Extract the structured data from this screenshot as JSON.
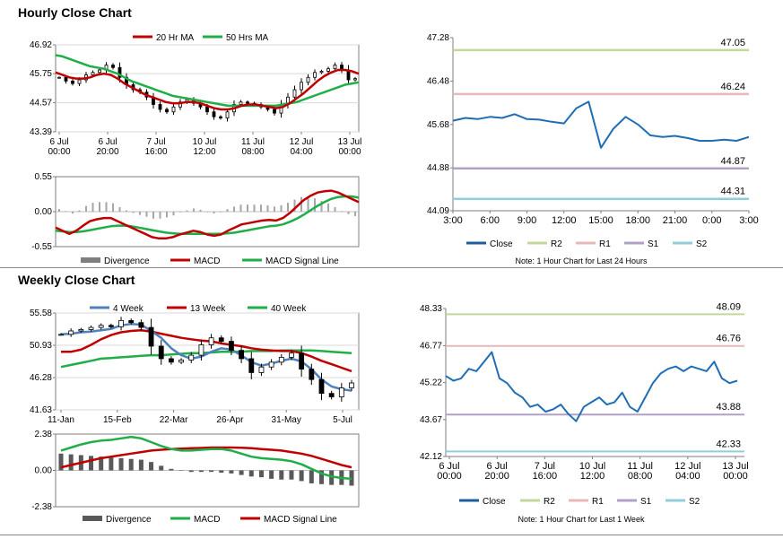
{
  "sections": {
    "hourly_title": "Hourly Close Chart",
    "weekly_title": "Weekly Close Chart"
  },
  "colors": {
    "red": "#c00000",
    "green": "#1fae48",
    "blue": "#1f6eb4",
    "darkblue": "#1c5e9c",
    "gray": "#7f7f7f",
    "r2": "#c4d79b",
    "r1": "#e6b9b8",
    "s1": "#b1a0c7",
    "s2": "#92cddc",
    "candle": "#000000"
  },
  "chart_data": [
    {
      "id": "hourly_price",
      "type": "candlestick",
      "legend": [
        "20 Hr MA",
        "50 Hrs MA"
      ],
      "yticks": [
        "46.92",
        "45.75",
        "44.57",
        "43.39"
      ],
      "ylim": [
        43.39,
        46.92
      ],
      "xticks": [
        "6 Jul\n00:00",
        "6 Jul\n20:00",
        "7 Jul\n16:00",
        "10 Jul\n12:00",
        "11 Jul\n08:00",
        "12 Jul\n04:00",
        "13 Jul\n00:00"
      ],
      "close": [
        45.6,
        45.45,
        45.35,
        45.5,
        45.7,
        45.8,
        45.9,
        46.1,
        46.0,
        45.6,
        45.3,
        45.1,
        45.0,
        44.8,
        44.5,
        44.3,
        44.2,
        44.4,
        44.6,
        44.7,
        44.55,
        44.4,
        44.2,
        44.0,
        43.95,
        44.2,
        44.5,
        44.6,
        44.55,
        44.5,
        44.4,
        44.3,
        44.15,
        44.5,
        44.8,
        45.1,
        45.4,
        45.6,
        45.8,
        45.85,
        45.95,
        46.1,
        45.9,
        45.5,
        45.55
      ],
      "ma20": [
        45.8,
        45.7,
        45.6,
        45.55,
        45.55,
        45.6,
        45.7,
        45.75,
        45.7,
        45.55,
        45.35,
        45.2,
        45.05,
        44.9,
        44.8,
        44.7,
        44.6,
        44.55,
        44.55,
        44.6,
        44.6,
        44.55,
        44.45,
        44.35,
        44.3,
        44.3,
        44.35,
        44.45,
        44.5,
        44.5,
        44.45,
        44.4,
        44.35,
        44.4,
        44.55,
        44.75,
        44.95,
        45.2,
        45.45,
        45.65,
        45.8,
        45.9,
        45.9,
        45.85,
        45.75
      ],
      "ma50": [
        46.5,
        46.45,
        46.35,
        46.25,
        46.15,
        46.05,
        46.0,
        45.95,
        45.85,
        45.75,
        45.6,
        45.45,
        45.35,
        45.25,
        45.15,
        45.05,
        44.95,
        44.85,
        44.8,
        44.75,
        44.7,
        44.65,
        44.6,
        44.55,
        44.5,
        44.45,
        44.45,
        44.45,
        44.45,
        44.45,
        44.45,
        44.45,
        44.45,
        44.5,
        44.55,
        44.6,
        44.7,
        44.8,
        44.9,
        45.0,
        45.1,
        45.2,
        45.3,
        45.35,
        45.4
      ]
    },
    {
      "id": "hourly_macd",
      "type": "bar+line",
      "legend": [
        "Divergence",
        "MACD",
        "MACD Signal Line"
      ],
      "yticks": [
        "0.55",
        "0.00",
        "-0.55"
      ],
      "ylim": [
        -0.55,
        0.55
      ],
      "macd": [
        -0.25,
        -0.3,
        -0.35,
        -0.3,
        -0.22,
        -0.15,
        -0.12,
        -0.1,
        -0.1,
        -0.15,
        -0.2,
        -0.25,
        -0.3,
        -0.35,
        -0.4,
        -0.42,
        -0.42,
        -0.4,
        -0.36,
        -0.33,
        -0.3,
        -0.32,
        -0.36,
        -0.38,
        -0.36,
        -0.3,
        -0.25,
        -0.2,
        -0.18,
        -0.16,
        -0.14,
        -0.13,
        -0.14,
        -0.1,
        -0.02,
        0.08,
        0.18,
        0.25,
        0.3,
        0.32,
        0.33,
        0.3,
        0.25,
        0.2,
        0.15
      ],
      "signal": [
        -0.3,
        -0.31,
        -0.32,
        -0.32,
        -0.31,
        -0.29,
        -0.27,
        -0.25,
        -0.23,
        -0.22,
        -0.22,
        -0.23,
        -0.25,
        -0.27,
        -0.29,
        -0.31,
        -0.33,
        -0.34,
        -0.35,
        -0.35,
        -0.35,
        -0.35,
        -0.35,
        -0.35,
        -0.35,
        -0.34,
        -0.33,
        -0.31,
        -0.29,
        -0.27,
        -0.25,
        -0.23,
        -0.22,
        -0.2,
        -0.16,
        -0.11,
        -0.05,
        0.02,
        0.09,
        0.15,
        0.2,
        0.23,
        0.24,
        0.24,
        0.22
      ],
      "divergence": [
        0.04,
        0.01,
        -0.03,
        0.02,
        0.09,
        0.14,
        0.15,
        0.15,
        0.13,
        0.07,
        0.02,
        -0.02,
        -0.05,
        -0.08,
        -0.11,
        -0.11,
        -0.09,
        -0.06,
        -0.01,
        0.02,
        0.05,
        0.03,
        -0.01,
        -0.03,
        -0.01,
        0.04,
        0.08,
        0.11,
        0.11,
        0.11,
        0.11,
        0.1,
        0.08,
        0.1,
        0.14,
        0.19,
        0.23,
        0.23,
        0.21,
        0.17,
        0.13,
        0.07,
        0.01,
        -0.04,
        -0.07
      ]
    },
    {
      "id": "hourly_close_24",
      "type": "line",
      "yticks": [
        "47.28",
        "46.48",
        "45.68",
        "44.88",
        "44.09"
      ],
      "ylim": [
        44.09,
        47.28
      ],
      "xticks": [
        "3:00",
        "6:00",
        "9:00",
        "12:00",
        "15:00",
        "18:00",
        "21:00",
        "0:00",
        "3:00"
      ],
      "levels": [
        {
          "name": "R2",
          "value": 47.05,
          "label": "47.05"
        },
        {
          "name": "R1",
          "value": 46.24,
          "label": "46.24"
        },
        {
          "name": "S1",
          "value": 44.87,
          "label": "44.87"
        },
        {
          "name": "S2",
          "value": 44.31,
          "label": "44.31"
        }
      ],
      "close": [
        45.75,
        45.8,
        45.78,
        45.82,
        45.8,
        45.87,
        45.78,
        45.77,
        45.73,
        45.7,
        45.98,
        46.1,
        45.25,
        45.6,
        45.82,
        45.68,
        45.48,
        45.45,
        45.47,
        45.43,
        45.38,
        45.38,
        45.4,
        45.38,
        45.45
      ],
      "legend": [
        "Close",
        "R2",
        "R1",
        "S1",
        "S2"
      ],
      "note": "Note: 1 Hour Chart for Last 24 Hours"
    },
    {
      "id": "weekly_price",
      "type": "candlestick",
      "legend": [
        "4 Week",
        "13 Week",
        "40 Week"
      ],
      "yticks": [
        "55.58",
        "50.93",
        "46.28",
        "41.63"
      ],
      "ylim": [
        41.63,
        55.58
      ],
      "xticks": [
        "11-Jan",
        "15-Feb",
        "22-Mar",
        "26-Apr",
        "31-May",
        "5-Jul"
      ],
      "close": [
        52.5,
        53.0,
        53.2,
        53.5,
        53.8,
        53.6,
        54.5,
        54.2,
        53.5,
        50.8,
        49.0,
        48.5,
        48.8,
        49.5,
        51.0,
        52.0,
        51.5,
        50.2,
        49.0,
        47.0,
        47.8,
        48.5,
        49.2,
        49.8,
        47.5,
        46.0,
        44.0,
        43.5,
        44.8,
        45.5
      ],
      "wk4": [
        52.5,
        52.6,
        52.8,
        52.9,
        53.1,
        53.3,
        53.8,
        54.0,
        53.9,
        53.0,
        52.0,
        50.5,
        49.5,
        49.0,
        49.3,
        50.0,
        50.5,
        50.3,
        49.5,
        48.5,
        48.0,
        48.3,
        48.7,
        49.0,
        48.6,
        47.5,
        46.0,
        45.0,
        44.6,
        44.4
      ],
      "wk13": [
        50.0,
        50.0,
        50.3,
        51.0,
        51.8,
        52.4,
        52.8,
        53.0,
        53.1,
        52.9,
        52.6,
        52.3,
        52.0,
        51.8,
        51.6,
        51.5,
        51.2,
        51.0,
        50.8,
        50.5,
        50.3,
        50.2,
        50.1,
        50.1,
        49.8,
        49.3,
        48.7,
        48.2,
        47.7,
        47.2
      ],
      "wk40": [
        47.8,
        48.1,
        48.4,
        48.7,
        49.0,
        49.1,
        49.2,
        49.3,
        49.4,
        49.5,
        49.5,
        49.6,
        49.7,
        49.8,
        49.8,
        49.9,
        50.0,
        50.0,
        50.0,
        50.1,
        50.1,
        50.1,
        50.2,
        50.2,
        50.2,
        50.2,
        50.1,
        50.0,
        49.9,
        49.8
      ]
    },
    {
      "id": "weekly_macd",
      "type": "bar+line",
      "legend": [
        "Divergence",
        "MACD",
        "MACD Signal Line"
      ],
      "yticks": [
        "2.38",
        "0.00",
        "-2.38"
      ],
      "ylim": [
        -2.38,
        2.38
      ],
      "macd": [
        1.3,
        1.5,
        1.7,
        1.85,
        1.95,
        2.0,
        2.1,
        2.2,
        2.1,
        1.85,
        1.6,
        1.4,
        1.3,
        1.3,
        1.35,
        1.4,
        1.4,
        1.3,
        1.1,
        0.9,
        0.8,
        0.75,
        0.7,
        0.6,
        0.4,
        0.1,
        -0.2,
        -0.4,
        -0.5,
        -0.55
      ],
      "signal": [
        0.2,
        0.35,
        0.5,
        0.65,
        0.8,
        0.9,
        1.0,
        1.1,
        1.2,
        1.3,
        1.35,
        1.4,
        1.42,
        1.45,
        1.47,
        1.5,
        1.5,
        1.5,
        1.48,
        1.45,
        1.4,
        1.35,
        1.3,
        1.2,
        1.1,
        0.95,
        0.75,
        0.55,
        0.35,
        0.2
      ],
      "divergence": [
        1.1,
        1.05,
        1.0,
        0.95,
        0.9,
        0.85,
        0.8,
        0.75,
        0.7,
        0.55,
        0.3,
        0.1,
        0.0,
        -0.1,
        -0.1,
        -0.1,
        -0.15,
        -0.2,
        -0.3,
        -0.4,
        -0.45,
        -0.55,
        -0.6,
        -0.6,
        -0.7,
        -0.85,
        -0.9,
        -0.95,
        -0.95,
        -1.0
      ]
    },
    {
      "id": "weekly_close_1w",
      "type": "line",
      "yticks": [
        "48.33",
        "46.77",
        "45.22",
        "43.67",
        "42.12"
      ],
      "ylim": [
        42.12,
        48.33
      ],
      "xticks": [
        "6 Jul\n00:00",
        "6 Jul\n20:00",
        "7 Jul\n16:00",
        "10 Jul\n12:00",
        "11 Jul\n08:00",
        "12 Jul\n04:00",
        "13 Jul\n00:00"
      ],
      "levels": [
        {
          "name": "R2",
          "value": 48.09,
          "label": "48.09"
        },
        {
          "name": "R1",
          "value": 46.76,
          "label": "46.76"
        },
        {
          "name": "S1",
          "value": 43.88,
          "label": "43.88"
        },
        {
          "name": "S2",
          "value": 42.33,
          "label": "42.33"
        }
      ],
      "close": [
        45.5,
        45.3,
        45.4,
        45.8,
        45.7,
        46.1,
        46.5,
        45.4,
        45.2,
        44.8,
        44.6,
        44.2,
        44.3,
        44.0,
        44.1,
        44.3,
        43.9,
        43.6,
        44.2,
        44.4,
        44.6,
        44.3,
        44.4,
        44.8,
        44.2,
        44.0,
        44.6,
        45.2,
        45.6,
        45.8,
        45.9,
        45.7,
        45.9,
        45.8,
        45.7,
        46.1,
        45.4,
        45.2,
        45.3
      ],
      "legend": [
        "Close",
        "R2",
        "R1",
        "S1",
        "S2"
      ],
      "note": "Note: 1 Hour Chart for Last 1 Week"
    }
  ]
}
